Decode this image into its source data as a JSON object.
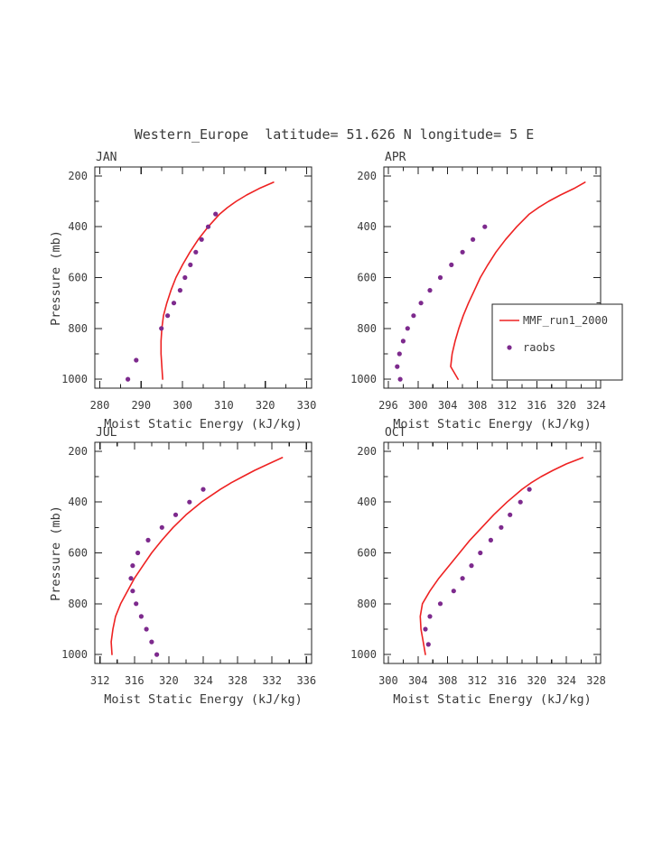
{
  "title": "Western_Europe  latitude= 51.626 N longitude= 5 E",
  "axis": {
    "xlabel": "Moist Static Energy (kJ/kg)",
    "ylabel": "Pressure (mb)"
  },
  "legend": {
    "position": "right-middle-of-APR-panel",
    "entries": [
      {
        "type": "line",
        "label": "MMF_run1_2000"
      },
      {
        "type": "dot",
        "label": "raobs"
      }
    ]
  },
  "colors": {
    "line": "#ee2222",
    "dots": "#7d2a8d",
    "frame": "#222222",
    "text": "#3a3a3a",
    "background": "#ffffff"
  },
  "chart_data": [
    {
      "type": "line",
      "panel": "JAN",
      "xlabel": "Moist Static Energy (kJ/kg)",
      "ylabel": "Pressure (mb)",
      "xlim": [
        278.8,
        331.2
      ],
      "xticks": [
        280,
        290,
        300,
        310,
        320,
        330
      ],
      "xminor_step": 5,
      "ylim": [
        1035,
        165
      ],
      "yticks": [
        200,
        400,
        600,
        800,
        1000
      ],
      "yminor": [
        300,
        500,
        700,
        900
      ],
      "show_legend": false,
      "series": [
        {
          "name": "MMF_run1_2000",
          "kind": "line",
          "points": [
            [
              322.0,
              225
            ],
            [
              318.5,
              250
            ],
            [
              315.5,
              275
            ],
            [
              313.0,
              300
            ],
            [
              310.8,
              325
            ],
            [
              309.0,
              350
            ],
            [
              306.2,
              400
            ],
            [
              303.8,
              450
            ],
            [
              301.8,
              500
            ],
            [
              300.0,
              550
            ],
            [
              298.4,
              600
            ],
            [
              297.2,
              650
            ],
            [
              296.2,
              700
            ],
            [
              295.4,
              750
            ],
            [
              295.0,
              800
            ],
            [
              294.8,
              850
            ],
            [
              294.8,
              900
            ],
            [
              295.0,
              950
            ],
            [
              295.2,
              1000
            ]
          ]
        },
        {
          "name": "raobs",
          "kind": "scatter",
          "points": [
            [
              308.0,
              350
            ],
            [
              306.2,
              400
            ],
            [
              304.6,
              450
            ],
            [
              303.2,
              500
            ],
            [
              301.9,
              550
            ],
            [
              300.6,
              600
            ],
            [
              299.4,
              650
            ],
            [
              297.9,
              700
            ],
            [
              296.4,
              750
            ],
            [
              294.9,
              800
            ],
            [
              288.8,
              925
            ],
            [
              286.8,
              1000
            ]
          ]
        }
      ]
    },
    {
      "type": "line",
      "panel": "APR",
      "xlabel": "Moist Static Energy (kJ/kg)",
      "ylabel": "Pressure (mb)",
      "xlim": [
        295.4,
        324.6
      ],
      "xticks": [
        296,
        300,
        304,
        308,
        312,
        316,
        320,
        324
      ],
      "xminor_step": 2,
      "ylim": [
        1035,
        165
      ],
      "yticks": [
        200,
        400,
        600,
        800,
        1000
      ],
      "yminor": [
        300,
        500,
        700,
        900
      ],
      "show_legend": true,
      "series": [
        {
          "name": "MMF_run1_2000",
          "kind": "line",
          "points": [
            [
              322.5,
              225
            ],
            [
              321.0,
              250
            ],
            [
              319.2,
              275
            ],
            [
              317.6,
              300
            ],
            [
              316.2,
              325
            ],
            [
              315.0,
              350
            ],
            [
              313.3,
              400
            ],
            [
              311.8,
              450
            ],
            [
              310.5,
              500
            ],
            [
              309.4,
              550
            ],
            [
              308.4,
              600
            ],
            [
              307.6,
              650
            ],
            [
              306.8,
              700
            ],
            [
              306.1,
              750
            ],
            [
              305.5,
              800
            ],
            [
              305.0,
              850
            ],
            [
              304.6,
              900
            ],
            [
              304.4,
              950
            ],
            [
              305.4,
              1000
            ]
          ]
        },
        {
          "name": "raobs",
          "kind": "scatter",
          "points": [
            [
              309.0,
              400
            ],
            [
              307.4,
              450
            ],
            [
              306.0,
              500
            ],
            [
              304.5,
              550
            ],
            [
              303.0,
              600
            ],
            [
              301.6,
              650
            ],
            [
              300.4,
              700
            ],
            [
              299.4,
              750
            ],
            [
              298.6,
              800
            ],
            [
              298.0,
              850
            ],
            [
              297.5,
              900
            ],
            [
              297.2,
              950
            ],
            [
              297.6,
              1000
            ]
          ]
        }
      ]
    },
    {
      "type": "line",
      "panel": "JUL",
      "xlabel": "Moist Static Energy (kJ/kg)",
      "ylabel": "Pressure (mb)",
      "xlim": [
        311.4,
        336.6
      ],
      "xticks": [
        312,
        316,
        320,
        324,
        328,
        332,
        336
      ],
      "xminor_step": 2,
      "ylim": [
        1035,
        165
      ],
      "yticks": [
        200,
        400,
        600,
        800,
        1000
      ],
      "yminor": [
        300,
        500,
        700,
        900
      ],
      "show_legend": false,
      "series": [
        {
          "name": "MMF_run1_2000",
          "kind": "line",
          "points": [
            [
              333.2,
              225
            ],
            [
              331.6,
              250
            ],
            [
              330.0,
              275
            ],
            [
              328.6,
              300
            ],
            [
              327.2,
              325
            ],
            [
              326.0,
              350
            ],
            [
              323.8,
              400
            ],
            [
              322.0,
              450
            ],
            [
              320.5,
              500
            ],
            [
              319.2,
              550
            ],
            [
              318.0,
              600
            ],
            [
              317.0,
              650
            ],
            [
              316.0,
              700
            ],
            [
              315.2,
              750
            ],
            [
              314.4,
              800
            ],
            [
              313.8,
              850
            ],
            [
              313.5,
              900
            ],
            [
              313.3,
              950
            ],
            [
              313.4,
              1000
            ]
          ]
        },
        {
          "name": "raobs",
          "kind": "scatter",
          "points": [
            [
              324.0,
              350
            ],
            [
              322.4,
              400
            ],
            [
              320.8,
              450
            ],
            [
              319.2,
              500
            ],
            [
              317.6,
              550
            ],
            [
              316.4,
              600
            ],
            [
              315.8,
              650
            ],
            [
              315.6,
              700
            ],
            [
              315.8,
              750
            ],
            [
              316.2,
              800
            ],
            [
              316.8,
              850
            ],
            [
              317.4,
              900
            ],
            [
              318.0,
              950
            ],
            [
              318.6,
              1000
            ]
          ]
        }
      ]
    },
    {
      "type": "line",
      "panel": "OCT",
      "xlabel": "Moist Static Energy (kJ/kg)",
      "ylabel": "Pressure (mb)",
      "xlim": [
        299.4,
        328.6
      ],
      "xticks": [
        300,
        304,
        308,
        312,
        316,
        320,
        324,
        328
      ],
      "xminor_step": 2,
      "ylim": [
        1035,
        165
      ],
      "yticks": [
        200,
        400,
        600,
        800,
        1000
      ],
      "yminor": [
        300,
        500,
        700,
        900
      ],
      "show_legend": false,
      "series": [
        {
          "name": "MMF_run1_2000",
          "kind": "line",
          "points": [
            [
              326.2,
              225
            ],
            [
              324.0,
              250
            ],
            [
              322.2,
              275
            ],
            [
              320.6,
              300
            ],
            [
              319.2,
              325
            ],
            [
              318.0,
              350
            ],
            [
              316.0,
              400
            ],
            [
              314.2,
              450
            ],
            [
              312.6,
              500
            ],
            [
              311.0,
              550
            ],
            [
              309.6,
              600
            ],
            [
              308.2,
              650
            ],
            [
              306.8,
              700
            ],
            [
              305.6,
              750
            ],
            [
              304.6,
              800
            ],
            [
              304.3,
              850
            ],
            [
              304.4,
              900
            ],
            [
              304.7,
              950
            ],
            [
              305.0,
              1000
            ]
          ]
        },
        {
          "name": "raobs",
          "kind": "scatter",
          "points": [
            [
              319.0,
              350
            ],
            [
              317.8,
              400
            ],
            [
              316.4,
              450
            ],
            [
              315.2,
              500
            ],
            [
              313.8,
              550
            ],
            [
              312.4,
              600
            ],
            [
              311.2,
              650
            ],
            [
              310.0,
              700
            ],
            [
              308.8,
              750
            ],
            [
              307.0,
              800
            ],
            [
              305.6,
              850
            ],
            [
              305.0,
              900
            ],
            [
              305.4,
              960
            ]
          ]
        }
      ]
    }
  ]
}
